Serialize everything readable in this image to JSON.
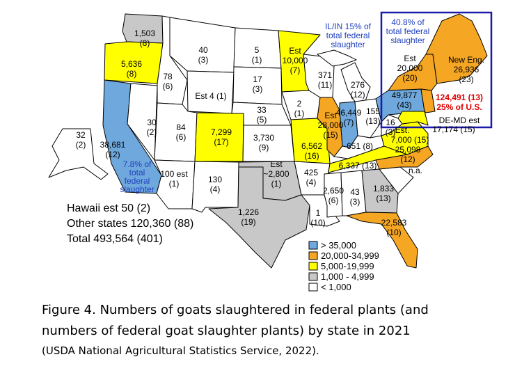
{
  "colors": {
    "over_35000": "#6fa8dc",
    "r20000_34999": "#f5a623",
    "r5000_19999": "#ffff00",
    "r1000_4999": "#c8c8c8",
    "under_1000": "#ffffff",
    "highlight_box": "#1a1aa8",
    "note_blue": "#1f3fbf",
    "note_red": "#e00000"
  },
  "states": {
    "WA": [
      "1,503",
      "(8)"
    ],
    "OR": [
      "5,636",
      "(8)"
    ],
    "CA": [
      "38,681",
      "(12)"
    ],
    "CA_note": [
      "7.8% of",
      "total",
      "federal",
      "slaughter"
    ],
    "NV": [
      "30",
      "(2)"
    ],
    "ID": [
      "78",
      "(6)"
    ],
    "MT": [
      "40",
      "(3)"
    ],
    "WY": [
      "Est 4 (1)"
    ],
    "UT": [
      "84",
      "(6)"
    ],
    "AZ": [
      "100 est",
      "(1)"
    ],
    "CO": [
      "7,299",
      "(17)"
    ],
    "NM": [
      "130",
      "(4)"
    ],
    "ND": [
      "5",
      "(1)"
    ],
    "SD": [
      "17",
      "(3)"
    ],
    "NE": [
      "33",
      "(5)"
    ],
    "KS": [
      "3,730",
      "(9)"
    ],
    "OK": [
      "Est",
      "~2,800",
      "(1)"
    ],
    "TX": [
      "1,226",
      "(19)"
    ],
    "MN": [
      "Est",
      "10,000",
      "(7)"
    ],
    "IA": [
      "2",
      "(1)"
    ],
    "MO": [
      "6,562",
      "(16)"
    ],
    "AR": [
      "425",
      "(4)"
    ],
    "LA": [
      "1",
      "(10)"
    ],
    "WI": [
      "371",
      "(11)"
    ],
    "IL": [
      "Est",
      "28,000",
      "(15)"
    ],
    "IN": [
      "46,449",
      "(7)"
    ],
    "MI": [
      "276",
      "(12)"
    ],
    "OH": [
      "155",
      "(13)"
    ],
    "KY": [
      "651 (8)"
    ],
    "TN": [
      "6,337 (13)"
    ],
    "MS": [
      "2,650",
      "(6)"
    ],
    "AL": [
      "43",
      "(3)"
    ],
    "GA": [
      "1,833",
      "(13)"
    ],
    "FL": [
      "22,583",
      "(10)"
    ],
    "SC": [
      "n.a."
    ],
    "NC": [
      "25,098",
      "(12)"
    ],
    "VA": [
      "Est.",
      "7,000 (15)"
    ],
    "WV": [
      "16",
      "(3)"
    ],
    "PA": [
      "49,877",
      "(43)"
    ],
    "NY": [
      "Est",
      "20,000",
      "(20)"
    ],
    "NewEng": [
      "New Eng.",
      "26,936",
      "(23)"
    ],
    "NJ": [
      "124,491 (13)",
      "25% of U.S."
    ],
    "DEMD": [
      "DE-MD est",
      "17,174 (15)"
    ],
    "AK": [
      "32",
      "(2)"
    ]
  },
  "notes": {
    "ilin": [
      "IL/IN 15% of",
      "total federal",
      "slaughter"
    ],
    "northeast": [
      "40.8% of",
      "total federal",
      "slaughter"
    ]
  },
  "totals": {
    "hawaii": "Hawaii est 50 (2)",
    "other": "Other states 120,360 (88)",
    "total": "Total  493,564 (401)"
  },
  "legend": [
    {
      "label": "> 35,000",
      "color": "#6fa8dc"
    },
    {
      "label": "20,000-34,999",
      "color": "#f5a623"
    },
    {
      "label": "5,000-19,999",
      "color": "#ffff00"
    },
    {
      "label": "1,000 - 4,999",
      "color": "#c8c8c8"
    },
    {
      "label": "< 1,000",
      "color": "#ffffff"
    }
  ],
  "caption": {
    "line1": "Figure 4. Numbers of goats slaughtered in federal plants (and",
    "line2": "numbers of federal goat slaughter plants) by state in 2021",
    "line3": "(USDA National Agricultural Statistics Service, 2022)."
  }
}
